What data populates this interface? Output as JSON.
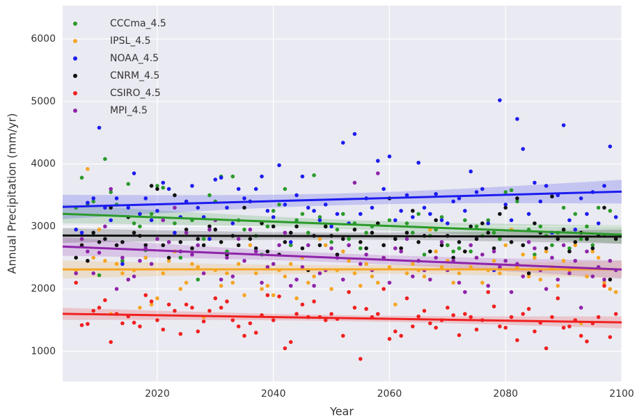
{
  "chart_data": {
    "type": "scatter",
    "xlabel": "Year",
    "ylabel": "Annual Precipitation (mm/yr)",
    "xlim": [
      2003.7,
      2100
    ],
    "ylim": [
      520,
      6535
    ],
    "xticks": [
      2020,
      2040,
      2060,
      2080,
      2100
    ],
    "yticks": [
      1000,
      2000,
      3000,
      4000,
      5000,
      6000
    ],
    "grid": true,
    "legend": "upper left",
    "regression": true,
    "x": [
      2006,
      2007,
      2008,
      2009,
      2010,
      2011,
      2012,
      2013,
      2014,
      2015,
      2016,
      2017,
      2018,
      2019,
      2020,
      2021,
      2022,
      2023,
      2024,
      2025,
      2026,
      2027,
      2028,
      2029,
      2030,
      2031,
      2032,
      2033,
      2034,
      2035,
      2036,
      2037,
      2038,
      2039,
      2040,
      2041,
      2042,
      2043,
      2044,
      2045,
      2046,
      2047,
      2048,
      2049,
      2050,
      2051,
      2052,
      2053,
      2054,
      2055,
      2056,
      2057,
      2058,
      2059,
      2060,
      2061,
      2062,
      2063,
      2064,
      2065,
      2066,
      2067,
      2068,
      2069,
      2070,
      2071,
      2072,
      2073,
      2074,
      2075,
      2076,
      2077,
      2078,
      2079,
      2080,
      2081,
      2082,
      2083,
      2084,
      2085,
      2086,
      2087,
      2088,
      2089,
      2090,
      2091,
      2092,
      2093,
      2094,
      2095,
      2096,
      2097,
      2098,
      2099
    ],
    "series": [
      {
        "name": "CCCma_4.5",
        "color": "#2a9a2a",
        "values": [
          3300,
          3780,
          3350,
          3400,
          2220,
          4080,
          3550,
          3350,
          2450,
          3680,
          3050,
          3000,
          2620,
          3200,
          3650,
          3620,
          2750,
          3050,
          2500,
          2900,
          3100,
          2150,
          2800,
          3500,
          3400,
          3800,
          2600,
          3800,
          3100,
          2950,
          3400,
          2850,
          2550,
          3000,
          3250,
          3350,
          3600,
          2700,
          3100,
          3200,
          2900,
          3820,
          3150,
          3000,
          2750,
          2950,
          3200,
          2800,
          3050,
          2650,
          2900,
          3000,
          3050,
          2700,
          3100,
          2800,
          2650,
          3050,
          2900,
          3200,
          2550,
          2850,
          2950,
          3150,
          2700,
          2600,
          2650,
          3100,
          2600,
          3000,
          2850,
          3100,
          2900,
          2800,
          3550,
          3580,
          3400,
          2700,
          2950,
          2550,
          3000,
          2850,
          2700,
          2900,
          3300,
          2650,
          3200,
          2800,
          3000,
          2700,
          3300,
          2850,
          3250,
          2800
        ]
      },
      {
        "name": "IPSL_4.5",
        "color": "#f5a623",
        "values": [
          2300,
          2700,
          3920,
          2500,
          2950,
          2450,
          1600,
          2400,
          2250,
          2150,
          2300,
          1700,
          2500,
          1750,
          1850,
          2250,
          2450,
          2600,
          2000,
          2100,
          2400,
          2350,
          1550,
          2800,
          2300,
          2050,
          2250,
          2100,
          2400,
          1900,
          2700,
          2250,
          2000,
          2050,
          1900,
          2300,
          2200,
          2400,
          1850,
          2500,
          2100,
          2200,
          2800,
          2700,
          2000,
          2300,
          2600,
          2450,
          2250,
          2050,
          2400,
          2200,
          2100,
          2500,
          2350,
          1750,
          2650,
          2250,
          2400,
          2300,
          2200,
          2950,
          2600,
          2350,
          2450,
          2100,
          2250,
          2600,
          2350,
          2500,
          2100,
          2300,
          2450,
          2250,
          2700,
          2950,
          2350,
          2550,
          2200,
          2500,
          2150,
          2600,
          2350,
          2050,
          2450,
          2300,
          2700,
          1450,
          2200,
          2600,
          2500,
          2100,
          2000,
          1950
        ]
      },
      {
        "name": "NOAA_4.5",
        "color": "#1c1cf0",
        "values": [
          2950,
          2900,
          3380,
          3450,
          4580,
          3300,
          3100,
          3450,
          2400,
          3300,
          3850,
          3200,
          3450,
          3100,
          3250,
          3700,
          3600,
          2900,
          3150,
          3400,
          3650,
          3300,
          3150,
          2800,
          3750,
          3780,
          3300,
          3050,
          3600,
          3450,
          3400,
          3600,
          3800,
          3250,
          3150,
          3980,
          3350,
          2750,
          3500,
          3800,
          3300,
          3250,
          3100,
          3350,
          3000,
          3200,
          4340,
          3050,
          4480,
          3200,
          3450,
          3300,
          4050,
          3600,
          4120,
          3100,
          3250,
          3500,
          3150,
          4020,
          3300,
          3200,
          3520,
          3100,
          3050,
          3400,
          3450,
          3250,
          3880,
          3550,
          3600,
          3050,
          2300,
          5020,
          3350,
          3100,
          4720,
          4240,
          3200,
          3700,
          3400,
          3650,
          2900,
          3500,
          4620,
          3100,
          2950,
          3450,
          3200,
          3550,
          3050,
          3650,
          4280,
          3150
        ]
      },
      {
        "name": "CNRM_4.5",
        "color": "#111111",
        "values": [
          2500,
          2700,
          2450,
          2900,
          2750,
          2800,
          3300,
          2700,
          2750,
          3150,
          2900,
          2850,
          2700,
          3650,
          3600,
          2700,
          2500,
          3500,
          2750,
          2950,
          2650,
          2800,
          2700,
          3000,
          2950,
          2750,
          2550,
          2850,
          2700,
          3300,
          2800,
          2650,
          3050,
          2600,
          3000,
          2550,
          2750,
          2900,
          3000,
          2650,
          2300,
          2850,
          2700,
          3000,
          2850,
          2550,
          2800,
          2700,
          2950,
          2750,
          2650,
          2900,
          3050,
          2700,
          3450,
          2800,
          2650,
          2900,
          3250,
          2750,
          2850,
          2600,
          3100,
          2700,
          2850,
          2500,
          2750,
          2600,
          3000,
          2800,
          3050,
          2900,
          2650,
          3200,
          3300,
          2750,
          3450,
          2700,
          2250,
          3050,
          2900,
          2650,
          3480,
          2800,
          2950,
          2600,
          2750,
          2900,
          2800,
          2650,
          2850,
          3300,
          2150,
          2800
        ]
      },
      {
        "name": "CSIRO_4.5",
        "color": "#f02020",
        "values": [
          2100,
          1420,
          1440,
          1650,
          1700,
          1820,
          1150,
          1600,
          1450,
          1560,
          1460,
          1400,
          1900,
          1800,
          1500,
          1350,
          1750,
          1650,
          1280,
          1750,
          1700,
          1320,
          1480,
          1650,
          1850,
          1700,
          1800,
          1500,
          1400,
          1250,
          1450,
          1300,
          1580,
          1900,
          1500,
          1880,
          1050,
          1150,
          1600,
          1750,
          1550,
          1800,
          1550,
          1500,
          1600,
          1520,
          1250,
          1950,
          1700,
          880,
          1680,
          1550,
          1600,
          2000,
          1200,
          1320,
          1250,
          1850,
          1400,
          1560,
          1650,
          1450,
          1380,
          1500,
          1700,
          1580,
          1260,
          1600,
          1550,
          1350,
          1500,
          1950,
          1720,
          1400,
          1380,
          1550,
          1180,
          1600,
          1680,
          1320,
          1460,
          1050,
          1550,
          1850,
          1380,
          1400,
          1500,
          1250,
          1160,
          1450,
          1550,
          2050,
          1230,
          1600
        ]
      },
      {
        "name": "MPI_4.5",
        "color": "#8e24aa",
        "values": [
          2250,
          2800,
          2600,
          2250,
          2580,
          3000,
          3600,
          2000,
          2500,
          2150,
          2200,
          2450,
          2650,
          2400,
          2800,
          3100,
          2750,
          3300,
          2600,
          2900,
          2550,
          2700,
          2250,
          2950,
          3100,
          2150,
          2500,
          2200,
          2800,
          2450,
          2950,
          2600,
          2100,
          2350,
          2400,
          2700,
          2900,
          2050,
          2150,
          2350,
          2700,
          2050,
          2250,
          2300,
          2650,
          2500,
          2150,
          2700,
          3700,
          2400,
          2550,
          2300,
          3850,
          2500,
          2100,
          2650,
          2600,
          2800,
          2200,
          2450,
          2300,
          2150,
          2500,
          2750,
          2300,
          2450,
          2100,
          1950,
          2700,
          2500,
          2550,
          2050,
          2600,
          2350,
          2450,
          1950,
          2400,
          2200,
          2750,
          2650,
          2300,
          2000,
          2500,
          2150,
          2700,
          2250,
          2450,
          1700,
          2600,
          2200,
          2350,
          2150,
          2450,
          2300
        ]
      }
    ]
  }
}
